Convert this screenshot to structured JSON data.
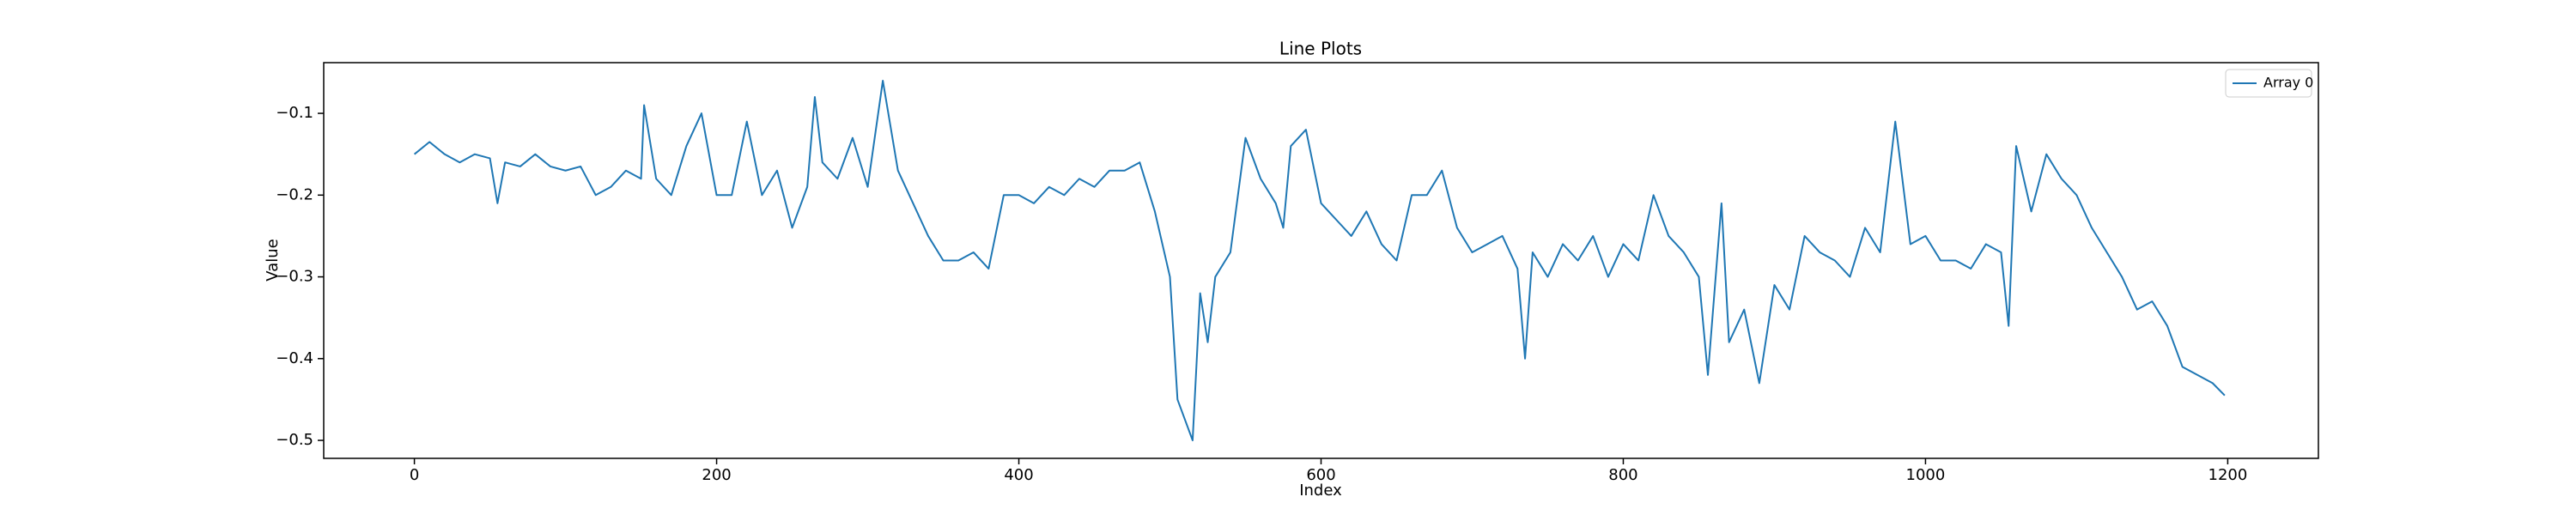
{
  "chart_data": {
    "type": "line",
    "title": "Line Plots",
    "x_label": "Index",
    "y_label": "Value",
    "x": [
      0,
      10,
      20,
      30,
      40,
      50,
      55,
      60,
      70,
      80,
      90,
      100,
      110,
      120,
      130,
      140,
      150,
      152,
      160,
      170,
      180,
      190,
      200,
      210,
      220,
      230,
      240,
      250,
      260,
      265,
      270,
      280,
      290,
      300,
      310,
      320,
      330,
      340,
      350,
      360,
      370,
      380,
      390,
      400,
      410,
      420,
      430,
      440,
      450,
      460,
      470,
      480,
      490,
      500,
      505,
      515,
      520,
      525,
      530,
      540,
      550,
      560,
      570,
      575,
      580,
      590,
      600,
      610,
      620,
      630,
      640,
      650,
      660,
      670,
      680,
      690,
      700,
      710,
      720,
      730,
      735,
      740,
      750,
      760,
      770,
      780,
      790,
      800,
      810,
      820,
      830,
      840,
      850,
      856,
      865,
      870,
      880,
      890,
      900,
      910,
      920,
      930,
      940,
      950,
      960,
      970,
      980,
      990,
      1000,
      1010,
      1020,
      1030,
      1040,
      1050,
      1055,
      1060,
      1070,
      1080,
      1090,
      1100,
      1110,
      1120,
      1130,
      1140,
      1150,
      1160,
      1170,
      1180,
      1190,
      1198
    ],
    "series": [
      {
        "name": "Array 0",
        "color": "#1f77b4",
        "values": [
          -0.15,
          -0.135,
          -0.15,
          -0.16,
          -0.15,
          -0.155,
          -0.21,
          -0.16,
          -0.165,
          -0.15,
          -0.165,
          -0.17,
          -0.165,
          -0.2,
          -0.19,
          -0.17,
          -0.18,
          -0.09,
          -0.18,
          -0.2,
          -0.14,
          -0.1,
          -0.2,
          -0.2,
          -0.11,
          -0.2,
          -0.17,
          -0.24,
          -0.19,
          -0.08,
          -0.16,
          -0.18,
          -0.13,
          -0.19,
          -0.06,
          -0.17,
          -0.21,
          -0.25,
          -0.28,
          -0.28,
          -0.27,
          -0.29,
          -0.2,
          -0.2,
          -0.21,
          -0.19,
          -0.2,
          -0.18,
          -0.19,
          -0.17,
          -0.17,
          -0.16,
          -0.22,
          -0.3,
          -0.45,
          -0.5,
          -0.32,
          -0.38,
          -0.3,
          -0.27,
          -0.13,
          -0.18,
          -0.21,
          -0.24,
          -0.14,
          -0.12,
          -0.21,
          -0.23,
          -0.25,
          -0.22,
          -0.26,
          -0.28,
          -0.2,
          -0.2,
          -0.17,
          -0.24,
          -0.27,
          -0.26,
          -0.25,
          -0.29,
          -0.4,
          -0.27,
          -0.3,
          -0.26,
          -0.28,
          -0.25,
          -0.3,
          -0.26,
          -0.28,
          -0.2,
          -0.25,
          -0.27,
          -0.3,
          -0.42,
          -0.21,
          -0.38,
          -0.34,
          -0.43,
          -0.31,
          -0.34,
          -0.25,
          -0.27,
          -0.28,
          -0.3,
          -0.24,
          -0.27,
          -0.11,
          -0.26,
          -0.25,
          -0.28,
          -0.28,
          -0.29,
          -0.26,
          -0.27,
          -0.36,
          -0.14,
          -0.22,
          -0.15,
          -0.18,
          -0.2,
          -0.24,
          -0.27,
          -0.3,
          -0.34,
          -0.33,
          -0.36,
          -0.41,
          -0.42,
          -0.43,
          -0.445
        ]
      }
    ],
    "xlim": [
      -60,
      1260
    ],
    "ylim": [
      -0.522,
      -0.038
    ],
    "xticks": [
      0,
      200,
      400,
      600,
      800,
      1000,
      1200
    ],
    "yticks": [
      {
        "value": -0.5,
        "label": "−0.5"
      },
      {
        "value": -0.4,
        "label": "−0.4"
      },
      {
        "value": -0.3,
        "label": "−0.3"
      },
      {
        "value": -0.2,
        "label": "−0.2"
      },
      {
        "value": -0.1,
        "label": "−0.1"
      }
    ],
    "legend": "upper right",
    "grid": false
  }
}
